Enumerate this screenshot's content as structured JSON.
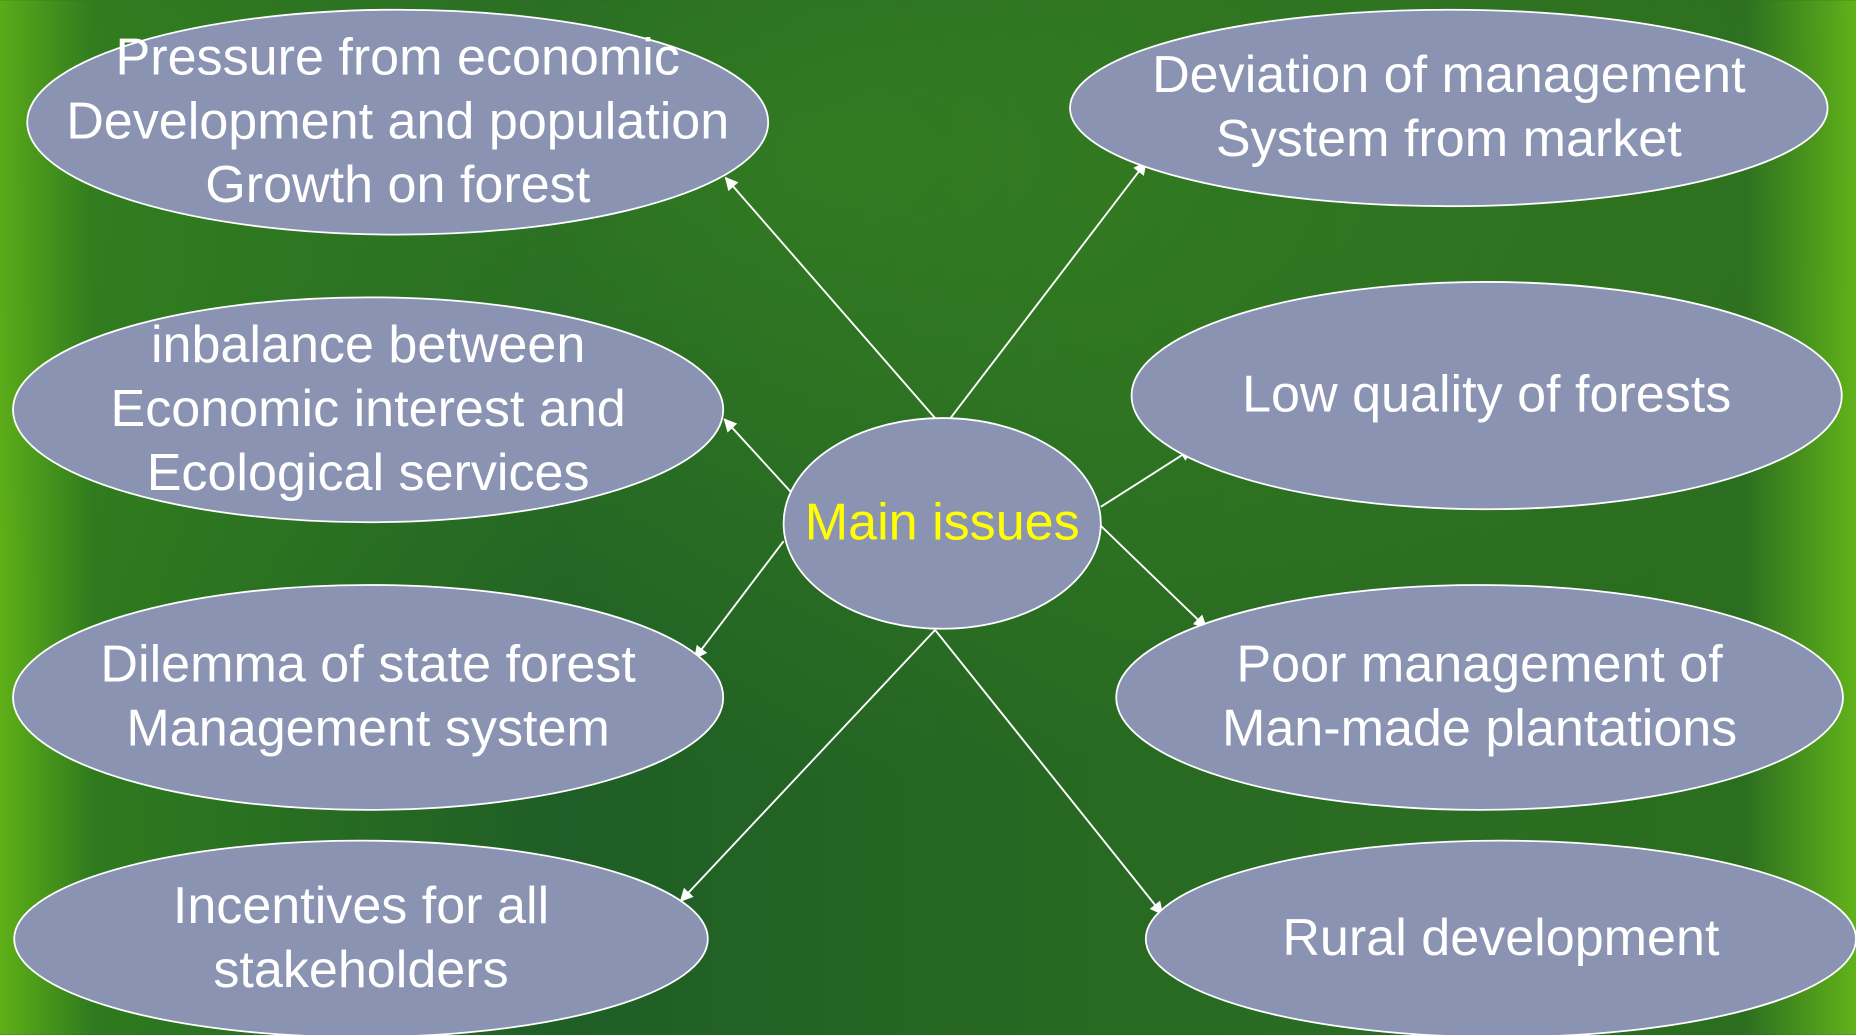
{
  "center": {
    "label": "Main issues"
  },
  "nodes": [
    {
      "lines": [
        "Pressure from economic",
        "Development and population",
        "Growth on forest"
      ]
    },
    {
      "lines": [
        "inbalance between",
        "Economic interest and",
        "Ecological services"
      ]
    },
    {
      "lines": [
        "Dilemma of state forest",
        "Management system"
      ]
    },
    {
      "lines": [
        "Incentives for all",
        "stakeholders"
      ]
    },
    {
      "lines": [
        "Deviation of management",
        "System from market"
      ]
    },
    {
      "lines": [
        "Low quality of forests"
      ]
    },
    {
      "lines": [
        "Poor management of",
        "Man-made plantations"
      ]
    },
    {
      "lines": [
        "Rural development"
      ]
    }
  ]
}
